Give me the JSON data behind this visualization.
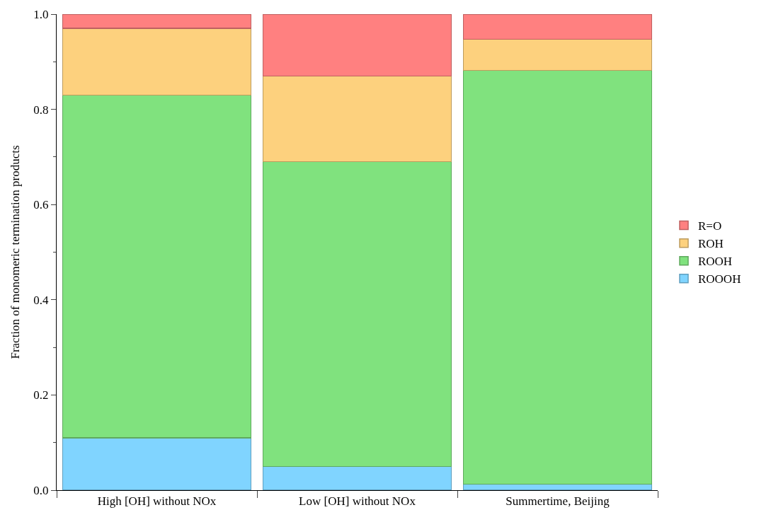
{
  "chart_data": {
    "type": "bar",
    "stacked": true,
    "ylabel": "Fraction of monomeric termination products",
    "categories": [
      "High [OH] without NOx",
      "Low [OH] without NOx",
      "Summertime, Beijing"
    ],
    "series": [
      {
        "name": "ROOOH",
        "color": "#80d4ff",
        "values": [
          0.11,
          0.05,
          0.013
        ]
      },
      {
        "name": "ROOH",
        "color": "#80e27e",
        "values": [
          0.72,
          0.64,
          0.869
        ]
      },
      {
        "name": "ROH",
        "color": "#fdd17e",
        "values": [
          0.14,
          0.18,
          0.065
        ]
      },
      {
        "name": "R=O",
        "color": "#ff8080",
        "values": [
          0.03,
          0.13,
          0.053
        ]
      }
    ],
    "ylim": [
      0,
      1
    ],
    "yticks": [
      {
        "value": 0,
        "label": "0.0"
      },
      0.2,
      0.4,
      0.6,
      0.8,
      {
        "value": 1,
        "label": "1.0"
      }
    ],
    "grid": false,
    "legend": "right"
  }
}
